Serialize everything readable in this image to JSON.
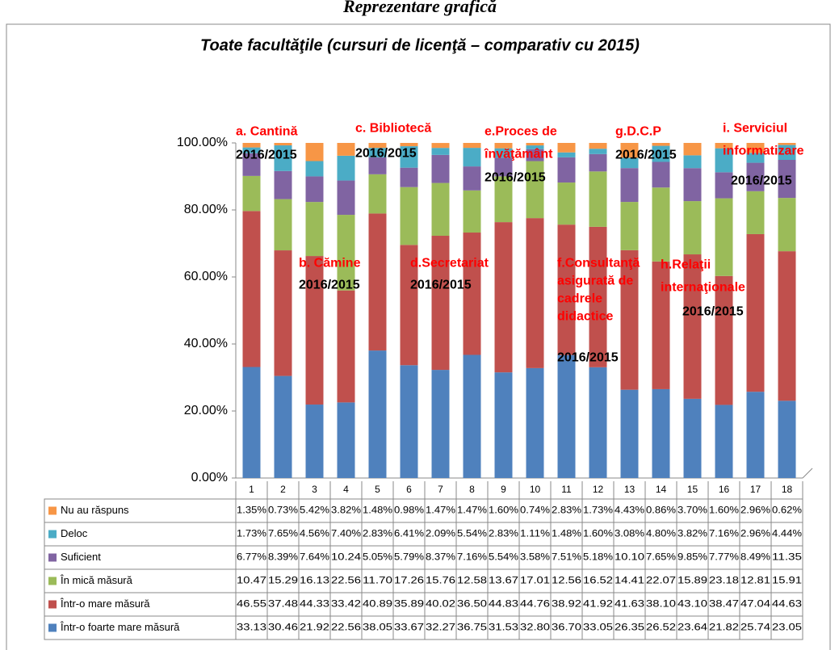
{
  "chart_data": {
    "type": "stacked_bar",
    "page_title": "Reprezentare grafică",
    "title": "Toate facultăţile (cursuri de licenţă – comparativ cu 2015)",
    "categories": [
      "1",
      "2",
      "3",
      "4",
      "5",
      "6",
      "7",
      "8",
      "9",
      "10",
      "11",
      "12",
      "13",
      "14",
      "15",
      "16",
      "17",
      "18"
    ],
    "ylim": [
      0,
      100
    ],
    "yticks": [
      {
        "value": 0,
        "label": "0.00%"
      },
      {
        "value": 20,
        "label": "20.00%"
      },
      {
        "value": 40,
        "label": "40.00%"
      },
      {
        "value": 60,
        "label": "60.00%"
      },
      {
        "value": 80,
        "label": "80.00%"
      },
      {
        "value": 100,
        "label": "100.00%"
      }
    ],
    "series": [
      {
        "name": "Într-o foarte mare măsură",
        "color": "#4f81bd",
        "values": [
          33.13,
          30.46,
          21.92,
          22.56,
          38.05,
          33.67,
          32.27,
          36.75,
          31.53,
          32.8,
          36.7,
          33.05,
          26.35,
          26.52,
          23.64,
          21.82,
          25.74,
          23.05
        ],
        "value_labels": [
          "33.13",
          "30.46",
          "21.92",
          "22.56",
          "38.05",
          "33.67",
          "32.27",
          "36.75",
          "31.53",
          "32.80",
          "36.70",
          "33.05",
          "26.35",
          "26.52",
          "23.64",
          "21.82",
          "25.74",
          "23.05"
        ]
      },
      {
        "name": "Într-o mare măsură",
        "color": "#c0504d",
        "values": [
          46.55,
          37.48,
          44.33,
          33.42,
          40.89,
          35.89,
          40.02,
          36.5,
          44.83,
          44.76,
          38.92,
          41.92,
          41.63,
          38.1,
          43.1,
          38.47,
          47.04,
          44.63
        ],
        "value_labels": [
          "46.55",
          "37.48",
          "44.33",
          "33.42",
          "40.89",
          "35.89",
          "40.02",
          "36.50",
          "44.83",
          "44.76",
          "38.92",
          "41.92",
          "41.63",
          "38.10",
          "43.10",
          "38.47",
          "47.04",
          "44.63"
        ]
      },
      {
        "name": "În mică măsură",
        "color": "#9bbb59",
        "values": [
          10.47,
          15.29,
          16.13,
          22.56,
          11.7,
          17.26,
          15.76,
          12.58,
          13.67,
          17.01,
          12.56,
          16.52,
          14.41,
          22.07,
          15.89,
          23.18,
          12.81,
          15.91
        ],
        "value_labels": [
          "10.47",
          "15.29",
          "16.13",
          "22.56",
          "11.70",
          "17.26",
          "15.76",
          "12.58",
          "13.67",
          "17.01",
          "12.56",
          "16.52",
          "14.41",
          "22.07",
          "15.89",
          "23.18",
          "12.81",
          "15.91"
        ]
      },
      {
        "name": "Suficient",
        "color": "#8064a2",
        "values": [
          6.77,
          8.39,
          7.64,
          10.24,
          5.05,
          5.79,
          8.37,
          7.16,
          5.54,
          3.58,
          7.51,
          5.18,
          10.1,
          7.65,
          9.85,
          7.77,
          8.49,
          11.35
        ],
        "value_labels": [
          "6.77%",
          "8.39%",
          "7.64%",
          "10.24",
          "5.05%",
          "5.79%",
          "8.37%",
          "7.16%",
          "5.54%",
          "3.58%",
          "7.51%",
          "5.18%",
          "10.10",
          "7.65%",
          "9.85%",
          "7.77%",
          "8.49%",
          "11.35"
        ]
      },
      {
        "name": "Deloc",
        "color": "#4bacc6",
        "values": [
          1.73,
          7.65,
          4.56,
          7.4,
          2.83,
          6.41,
          2.09,
          5.54,
          2.83,
          1.11,
          1.48,
          1.6,
          3.08,
          4.8,
          3.82,
          7.16,
          2.96,
          4.44
        ],
        "value_labels": [
          "1.73%",
          "7.65%",
          "4.56%",
          "7.40%",
          "2.83%",
          "6.41%",
          "2.09%",
          "5.54%",
          "2.83%",
          "1.11%",
          "1.48%",
          "1.60%",
          "3.08%",
          "4.80%",
          "3.82%",
          "7.16%",
          "2.96%",
          "4.44%"
        ]
      },
      {
        "name": "Nu au răspuns",
        "color": "#f79646",
        "values": [
          1.35,
          0.73,
          5.42,
          3.82,
          1.48,
          0.98,
          1.47,
          1.47,
          1.6,
          0.74,
          2.83,
          1.73,
          4.43,
          0.86,
          3.7,
          1.6,
          2.96,
          0.62
        ],
        "value_labels": [
          "1.35%",
          "0.73%",
          "5.42%",
          "3.82%",
          "1.48%",
          "0.98%",
          "1.47%",
          "1.47%",
          "1.60%",
          "0.74%",
          "2.83%",
          "1.73%",
          "4.43%",
          "0.86%",
          "3.70%",
          "1.60%",
          "2.96%",
          "0.62%"
        ]
      }
    ],
    "annotations": [
      {
        "lines": [
          "a. Cantină"
        ],
        "period": "2016/2015"
      },
      {
        "lines": [
          "b. Cămine"
        ],
        "period": "2016/2015"
      },
      {
        "lines": [
          "c. Bibliotecă"
        ],
        "period": "2016/2015"
      },
      {
        "lines": [
          "d.Secretariat"
        ],
        "period": "2016/2015"
      },
      {
        "lines": [
          "e.Proces de",
          "învăţământ"
        ],
        "period": "2016/2015"
      },
      {
        "lines": [
          "f.Consultanţă",
          "asigurată de",
          "cadrele",
          "didactice"
        ],
        "period": "2016/2015"
      },
      {
        "lines": [
          "g.D.C.P"
        ],
        "period": "2016/2015"
      },
      {
        "lines": [
          "h.Relaţii",
          "internaţionale"
        ],
        "period": "2016/2015"
      },
      {
        "lines": [
          "i. Serviciul",
          "informatizare"
        ],
        "period": "2016/2015"
      }
    ]
  }
}
